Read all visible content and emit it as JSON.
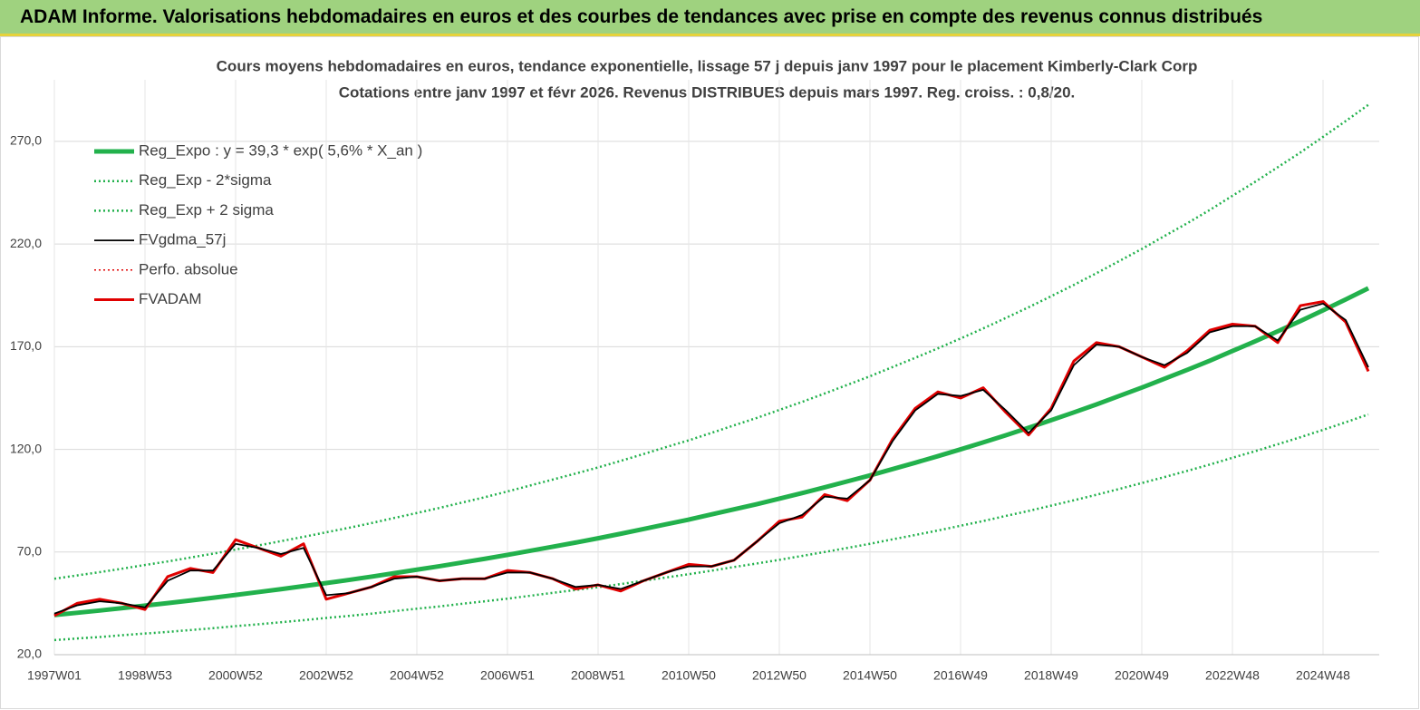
{
  "header": {
    "title": "ADAM Informe. Valorisations hebdomadaires en euros et des courbes de tendances avec prise en compte des revenus connus distribués"
  },
  "chart_data": {
    "type": "line",
    "title": "Cours moyens hebdomadaires en euros, tendance exponentielle, lissage 57 j depuis janv 1997 pour le placement Kimberly-Clark Corp",
    "subtitle": "Cotations entre janv 1997 et févr 2026. Revenus DISTRIBUES depuis mars 1997. Reg. croiss. : 0,8/20.",
    "categories": [
      "1997W01",
      null,
      null,
      null,
      "1998W53",
      null,
      null,
      null,
      "2000W52",
      null,
      null,
      null,
      "2002W52",
      null,
      null,
      null,
      "2004W52",
      null,
      null,
      null,
      "2006W51",
      null,
      null,
      null,
      "2008W51",
      null,
      null,
      null,
      "2010W50",
      null,
      null,
      null,
      "2012W50",
      null,
      null,
      null,
      "2014W50",
      null,
      null,
      null,
      "2016W49",
      null,
      null,
      null,
      "2018W49",
      null,
      null,
      null,
      "2020W49",
      null,
      null,
      null,
      "2022W48",
      null,
      null,
      null,
      "2024W48",
      null,
      null
    ],
    "ylim": [
      20,
      300
    ],
    "yticks": [
      {
        "value": 20,
        "label": "20,0"
      },
      {
        "value": 70,
        "label": "70,0"
      },
      {
        "value": 120,
        "label": "120,0"
      },
      {
        "value": 170,
        "label": "170,0"
      },
      {
        "value": 220,
        "label": "220,0"
      },
      {
        "value": 270,
        "label": "270,0"
      }
    ],
    "grid": true,
    "legend": "upper left",
    "series": [
      {
        "name": "Reg_Expo : y = 39,3 * exp( 5,6% *  X_an )",
        "color": "#22b14c",
        "line_style": "solid",
        "values": [
          39.3,
          40.4,
          41.5,
          42.7,
          43.9,
          45.1,
          46.4,
          47.7,
          49.1,
          50.5,
          51.9,
          53.4,
          54.9,
          56.4,
          58.0,
          59.7,
          61.4,
          63.1,
          64.9,
          66.7,
          68.6,
          70.6,
          72.6,
          74.6,
          76.7,
          78.9,
          81.2,
          83.5,
          85.8,
          88.3,
          90.8,
          93.3,
          96.0,
          98.7,
          101.5,
          104.4,
          107.3,
          110.4,
          113.5,
          116.7,
          120.0,
          123.4,
          126.9,
          130.5,
          134.2,
          138.0,
          141.9,
          146.0,
          150.1,
          154.4,
          158.7,
          163.2,
          167.9,
          172.6,
          177.5,
          182.5,
          187.7,
          193.0,
          198.5
        ]
      },
      {
        "name": "Reg_Exp - 2*sigma",
        "color": "#22b14c",
        "line_style": "dotted",
        "values": [
          27.1,
          27.9,
          28.6,
          29.5,
          30.3,
          31.1,
          32.0,
          32.9,
          33.9,
          34.8,
          35.8,
          36.8,
          37.9,
          38.9,
          40.0,
          41.2,
          42.4,
          43.5,
          44.8,
          46.0,
          47.3,
          48.7,
          50.1,
          51.5,
          52.9,
          54.4,
          56.0,
          57.6,
          59.2,
          60.9,
          62.7,
          64.4,
          66.2,
          68.1,
          70.0,
          72.0,
          74.0,
          76.2,
          78.3,
          80.5,
          82.8,
          85.1,
          87.6,
          90.0,
          92.6,
          95.2,
          97.9,
          100.7,
          103.6,
          106.5,
          109.5,
          112.6,
          115.9,
          119.1,
          122.5,
          125.9,
          129.5,
          133.2,
          137.0
        ]
      },
      {
        "name": "Reg_Exp + 2 sigma",
        "color": "#22b14c",
        "line_style": "dotted",
        "values": [
          57.0,
          58.6,
          60.2,
          61.9,
          63.7,
          65.4,
          67.3,
          69.2,
          71.2,
          73.2,
          75.3,
          77.4,
          79.6,
          81.8,
          84.1,
          86.6,
          89.0,
          91.5,
          94.1,
          96.7,
          99.5,
          102.4,
          105.3,
          108.2,
          111.2,
          114.4,
          117.7,
          121.1,
          124.4,
          128.0,
          131.7,
          135.3,
          139.2,
          143.1,
          147.2,
          151.4,
          155.6,
          160.1,
          164.6,
          169.2,
          174.0,
          178.9,
          184.0,
          189.2,
          194.6,
          200.1,
          205.8,
          211.7,
          217.6,
          223.9,
          230.1,
          236.6,
          243.5,
          250.3,
          257.4,
          264.6,
          272.2,
          279.9,
          287.8
        ]
      },
      {
        "name": "FVgdma_57j",
        "color": "#000000",
        "line_style": "solid",
        "values": [
          40,
          44,
          46,
          45,
          43,
          56,
          61,
          61,
          74,
          72,
          69,
          72,
          49,
          50,
          53,
          57,
          58,
          56,
          57,
          57,
          60,
          60,
          57,
          53,
          54,
          52,
          56,
          60,
          63,
          63,
          66,
          75,
          84,
          88,
          97,
          96,
          105,
          124,
          139,
          147,
          146,
          149,
          139,
          128,
          139,
          161,
          171,
          170,
          165,
          161,
          167,
          177,
          180,
          180,
          173,
          188,
          191,
          183,
          160
        ]
      },
      {
        "name": "Perfo. absolue",
        "color": "#e00000",
        "line_style": "dotted",
        "values": [
          39,
          45,
          47,
          45,
          42,
          58,
          62,
          60,
          76,
          72,
          68,
          74,
          47,
          50,
          53,
          58,
          58,
          56,
          57,
          57,
          61,
          60,
          57,
          52,
          54,
          51,
          56,
          60,
          64,
          63,
          66,
          75,
          85,
          87,
          98,
          95,
          105,
          125,
          140,
          148,
          145,
          150,
          138,
          127,
          140,
          163,
          172,
          170,
          165,
          160,
          168,
          178,
          181,
          180,
          172,
          190,
          192,
          182,
          158
        ]
      },
      {
        "name": "FVADAM",
        "color": "#e00000",
        "line_style": "solid",
        "values": [
          39,
          45,
          47,
          45,
          42,
          58,
          62,
          60,
          76,
          72,
          68,
          74,
          47,
          50,
          53,
          58,
          58,
          56,
          57,
          57,
          61,
          60,
          57,
          52,
          54,
          51,
          56,
          60,
          64,
          63,
          66,
          75,
          85,
          87,
          98,
          95,
          105,
          125,
          140,
          148,
          145,
          150,
          138,
          127,
          140,
          163,
          172,
          170,
          165,
          160,
          168,
          178,
          181,
          180,
          172,
          190,
          192,
          182,
          158
        ]
      }
    ]
  }
}
